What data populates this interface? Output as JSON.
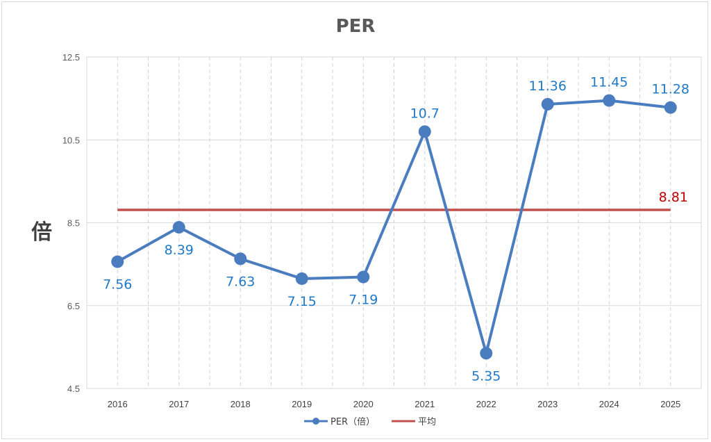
{
  "chart_data": {
    "type": "line",
    "title": "PER",
    "ylabel": "倍",
    "xlabel": "",
    "ylim": [
      4.5,
      12.5
    ],
    "y_ticks": [
      4.5,
      6.5,
      8.5,
      10.5,
      12.5
    ],
    "y_tick_labels": [
      "4.5",
      "6.5",
      "8.5",
      "10.5",
      "12.5"
    ],
    "categories": [
      "2016",
      "2017",
      "2018",
      "2019",
      "2020",
      "2021",
      "2022",
      "2023",
      "2024",
      "2025"
    ],
    "series": [
      {
        "name": "PER（倍）",
        "values": [
          7.56,
          8.39,
          7.63,
          7.15,
          7.19,
          10.7,
          5.35,
          11.36,
          11.45,
          11.28
        ],
        "labels": [
          "7.56",
          "8.39",
          "7.63",
          "7.15",
          "7.19",
          "10.7",
          "5.35",
          "11.36",
          "11.45",
          "11.28"
        ],
        "label_positions": [
          "below",
          "below",
          "below",
          "below",
          "below",
          "above",
          "below",
          "above",
          "above",
          "above"
        ],
        "color": "#4a7cc0",
        "label_color": "#1f78c8",
        "marker": "circle"
      },
      {
        "name": "平均",
        "values": [
          8.81,
          8.81,
          8.81,
          8.81,
          8.81,
          8.81,
          8.81,
          8.81,
          8.81,
          8.81
        ],
        "end_label": "8.81",
        "color": "#c0504d",
        "label_color": "#c00000",
        "marker": "none"
      }
    ],
    "grid": {
      "horizontal": true,
      "vertical": "dashed"
    },
    "legend_position": "bottom"
  }
}
